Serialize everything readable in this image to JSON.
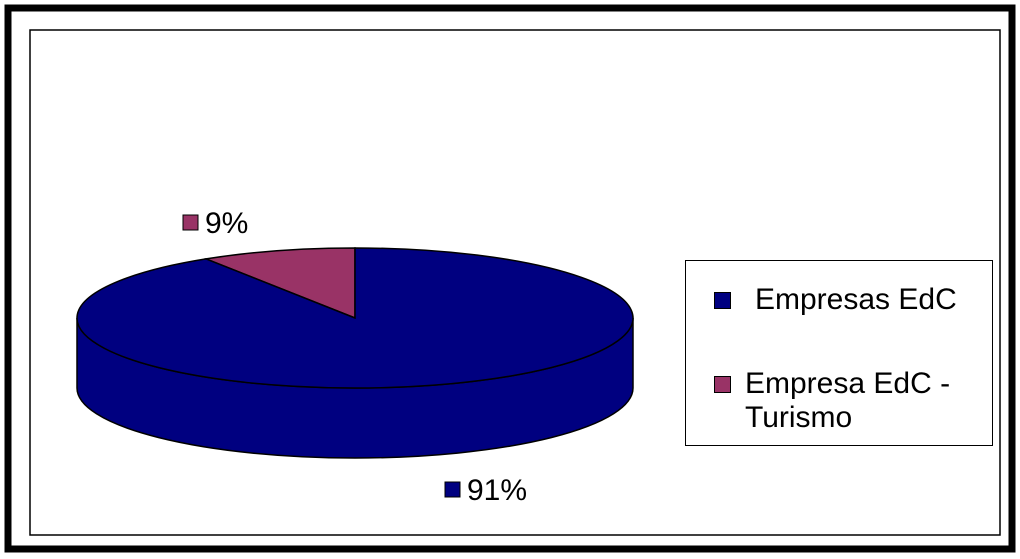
{
  "chart_data": {
    "type": "pie",
    "categories": [
      "Empresas EdC",
      "Empresa EdC - Turismo"
    ],
    "values": [
      91,
      9
    ],
    "value_labels": [
      "91%",
      "9%"
    ],
    "colors": [
      "#000080",
      "#993366"
    ],
    "legend": "right"
  }
}
